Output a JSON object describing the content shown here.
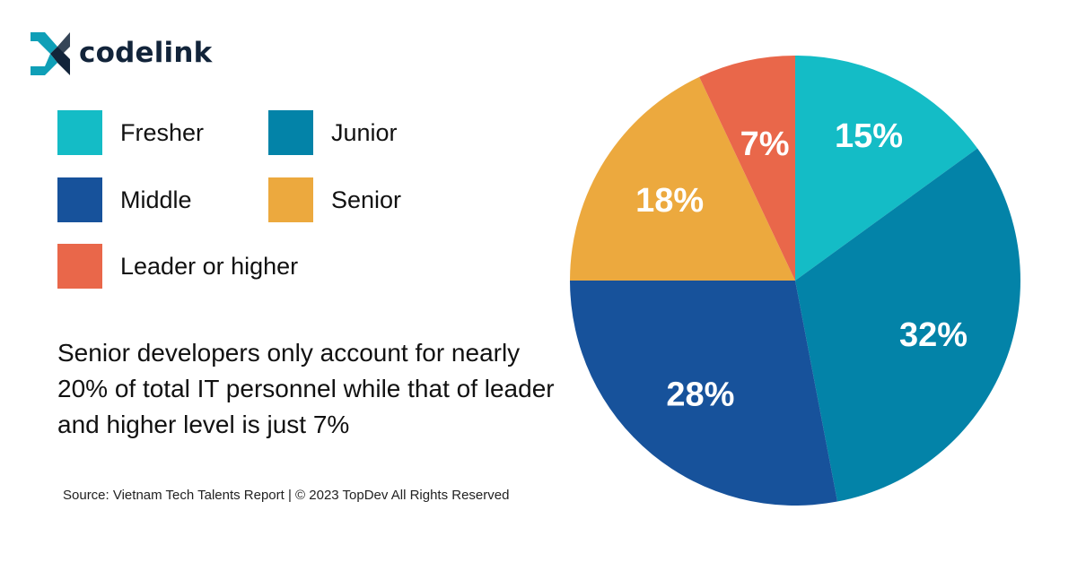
{
  "brand": {
    "name": "codelink",
    "colors": {
      "mark_primary": "#0f9fb7",
      "mark_dark": "#12243a"
    }
  },
  "legend": {
    "items": [
      {
        "label": "Fresher",
        "color": "#14bcc6"
      },
      {
        "label": "Junior",
        "color": "#0383a8"
      },
      {
        "label": "Middle",
        "color": "#17529b"
      },
      {
        "label": "Senior",
        "color": "#eca93e"
      },
      {
        "label": "Leader or higher",
        "color": "#e9674a"
      }
    ]
  },
  "summary_text": "Senior developers only account for nearly 20% of total IT personnel while that of leader and higher level is just 7%",
  "source_text": "Source: Vietnam Tech Talents Report | © 2023 TopDev All Rights Reserved",
  "chart_data": {
    "type": "pie",
    "title": "",
    "start_angle": "12 o'clock",
    "direction": "clockwise",
    "label_color": "#ffffff",
    "slices": [
      {
        "name": "Fresher",
        "value": 15,
        "label": "15%",
        "color": "#14bcc6"
      },
      {
        "name": "Junior",
        "value": 32,
        "label": "32%",
        "color": "#0383a8"
      },
      {
        "name": "Middle",
        "value": 28,
        "label": "28%",
        "color": "#17529b"
      },
      {
        "name": "Senior",
        "value": 18,
        "label": "18%",
        "color": "#eca93e"
      },
      {
        "name": "Leader or higher",
        "value": 7,
        "label": "7%",
        "color": "#e9674a"
      }
    ]
  }
}
